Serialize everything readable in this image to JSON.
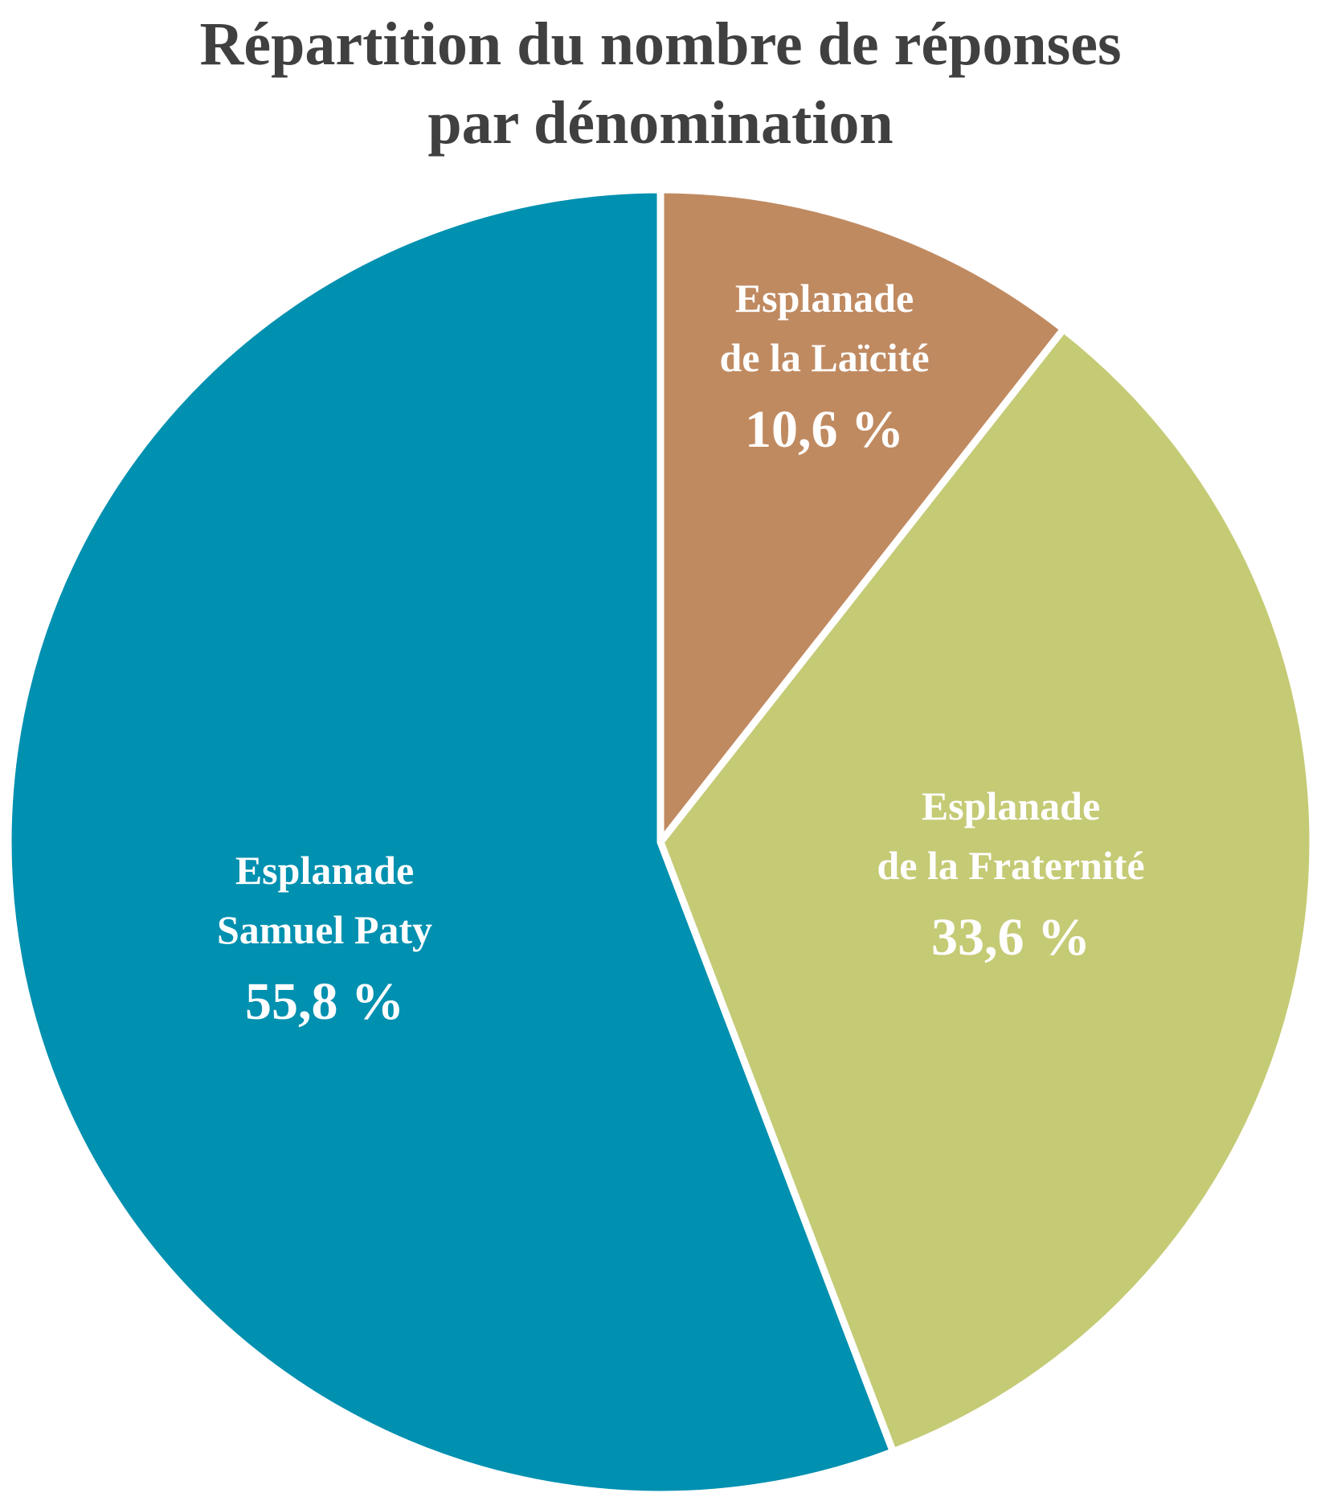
{
  "chart_data": {
    "type": "pie",
    "title_lines": [
      "Répartition du nombre de réponses",
      "par dénomination"
    ],
    "start": "top",
    "direction": "clockwise",
    "slices": [
      {
        "label_lines": [
          "Esplanade",
          "de la Laïcité"
        ],
        "value": 10.6,
        "value_label": "10,6 %",
        "color": "#c08a61"
      },
      {
        "label_lines": [
          "Esplanade",
          "de la Fraternité"
        ],
        "value": 33.6,
        "value_label": "33,6 %",
        "color": "#c5ca75"
      },
      {
        "label_lines": [
          "Esplanade",
          "Samuel Paty"
        ],
        "value": 55.8,
        "value_label": "55,8 %",
        "color": "#0090b0"
      }
    ],
    "slice_border_color": "#ffffff"
  }
}
